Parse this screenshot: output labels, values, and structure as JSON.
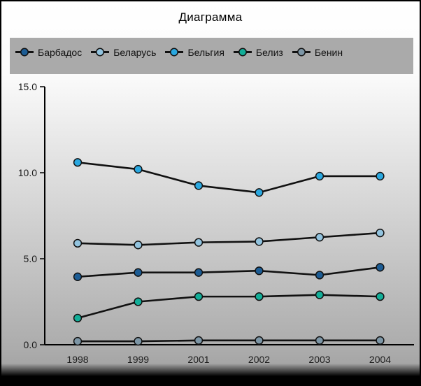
{
  "chart_data": {
    "type": "line",
    "title": "Диаграмма",
    "categories": [
      "1998",
      "1999",
      "2001",
      "2002",
      "2003",
      "2004"
    ],
    "series": [
      {
        "name": "Барбадос",
        "color": "#1C5C94",
        "values": [
          3.95,
          4.2,
          4.2,
          4.3,
          4.05,
          4.5
        ]
      },
      {
        "name": "Беларусь",
        "color": "#92C3DE",
        "values": [
          5.9,
          5.8,
          5.95,
          6.0,
          6.25,
          6.5
        ]
      },
      {
        "name": "Бельгия",
        "color": "#2AA8E0",
        "values": [
          10.6,
          10.2,
          9.25,
          8.85,
          9.8,
          9.8
        ]
      },
      {
        "name": "Белиз",
        "color": "#12AE98",
        "values": [
          1.55,
          2.5,
          2.8,
          2.8,
          2.9,
          2.8
        ]
      },
      {
        "name": "Бенин",
        "color": "#7D96A6",
        "values": [
          0.2,
          0.2,
          0.25,
          0.25,
          0.25,
          0.25
        ]
      }
    ],
    "xlabel": "",
    "ylabel": "",
    "ylim": [
      0,
      15
    ],
    "yticks": [
      0.0,
      5.0,
      10.0,
      15.0
    ],
    "ytick_labels": [
      "0.0",
      "5.0",
      "10.0",
      "15.0"
    ],
    "grid": false,
    "legend_position": "top",
    "legend_background": "#AAAAAA",
    "line_color": "#111111"
  }
}
